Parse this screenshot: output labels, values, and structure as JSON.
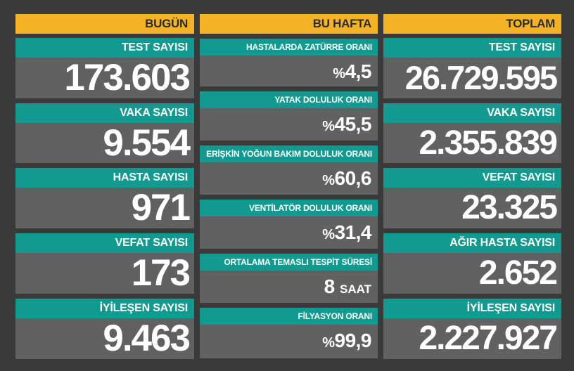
{
  "today": {
    "header": "BUGÜN",
    "items": [
      {
        "label": "TEST SAYISI",
        "value": "173.603"
      },
      {
        "label": "VAKA SAYISI",
        "value": "9.554"
      },
      {
        "label": "HASTA SAYISI",
        "value": "971"
      },
      {
        "label": "VEFAT SAYISI",
        "value": "173"
      },
      {
        "label": "İYİLEŞEN SAYISI",
        "value": "9.463"
      }
    ]
  },
  "week": {
    "header": "BU HAFTA",
    "items": [
      {
        "label": "HASTALARDA ZATÜRRE ORANI",
        "prefix": "%",
        "value": "4,5",
        "unit": ""
      },
      {
        "label": "YATAK DOLULUK ORANI",
        "prefix": "%",
        "value": "45,5",
        "unit": ""
      },
      {
        "label": "ERİŞKİN YOĞUN BAKIM DOLULUK ORANI",
        "prefix": "%",
        "value": "60,6",
        "unit": ""
      },
      {
        "label": "VENTİLATÖR DOLULUK ORANI",
        "prefix": "%",
        "value": "31,4",
        "unit": ""
      },
      {
        "label": "ORTALAMA TEMASLI TESPİT SÜRESİ",
        "prefix": "",
        "value": "8",
        "unit": "SAAT"
      },
      {
        "label": "FİLYASYON ORANI",
        "prefix": "%",
        "value": "99,9",
        "unit": ""
      }
    ]
  },
  "total": {
    "header": "TOPLAM",
    "items": [
      {
        "label": "TEST SAYISI",
        "value": "26.729.595"
      },
      {
        "label": "VAKA SAYISI",
        "value": "2.355.839"
      },
      {
        "label": "VEFAT SAYISI",
        "value": "23.325"
      },
      {
        "label": "AĞIR HASTA SAYISI",
        "value": "2.652"
      },
      {
        "label": "İYİLEŞEN SAYISI",
        "value": "2.227.927"
      }
    ]
  },
  "colors": {
    "background": "#3a3a3a",
    "header": "#f4b324",
    "label_bar": "#129a90",
    "panel": "#616161",
    "text": "#ffffff"
  }
}
